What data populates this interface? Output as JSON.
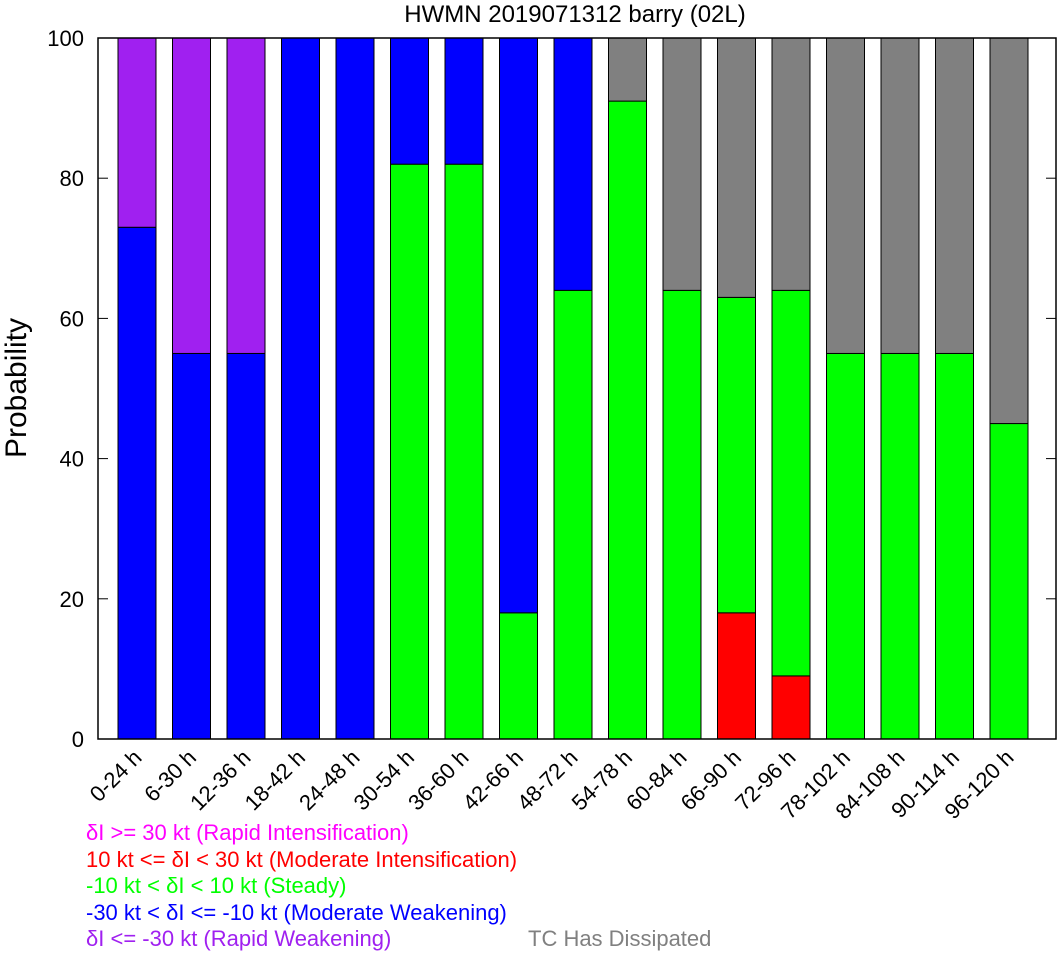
{
  "chart_data": {
    "type": "bar",
    "stacked": true,
    "title": "HWMN 2019071312 barry (02L)",
    "xlabel": "",
    "ylabel": "Probability",
    "ylim": [
      0,
      100
    ],
    "yticks": [
      0,
      20,
      40,
      60,
      80,
      100
    ],
    "grid": false,
    "categories": [
      "0-24 h",
      "6-30 h",
      "12-36 h",
      "18-42 h",
      "24-48 h",
      "30-54 h",
      "36-60 h",
      "42-66 h",
      "48-72 h",
      "54-78 h",
      "60-84 h",
      "66-90 h",
      "72-96 h",
      "78-102 h",
      "84-108 h",
      "90-114 h",
      "96-120 h"
    ],
    "series": [
      {
        "key": "ri",
        "color": "#ff00ff",
        "values": [
          0,
          0,
          0,
          0,
          0,
          0,
          0,
          0,
          0,
          0,
          0,
          0,
          0,
          0,
          0,
          0,
          0
        ]
      },
      {
        "key": "mi",
        "color": "#ff0000",
        "values": [
          0,
          0,
          0,
          0,
          0,
          0,
          0,
          0,
          0,
          0,
          0,
          18,
          9,
          0,
          0,
          0,
          0
        ]
      },
      {
        "key": "steady",
        "color": "#00ff00",
        "values": [
          0,
          0,
          0,
          0,
          0,
          82,
          82,
          18,
          64,
          91,
          64,
          45,
          55,
          55,
          55,
          55,
          45
        ]
      },
      {
        "key": "mw",
        "color": "#0000ff",
        "values": [
          73,
          55,
          55,
          100,
          100,
          18,
          18,
          82,
          36,
          0,
          0,
          0,
          0,
          0,
          0,
          0,
          0
        ]
      },
      {
        "key": "rw",
        "color": "#a020f0",
        "values": [
          27,
          45,
          45,
          0,
          0,
          0,
          0,
          0,
          0,
          0,
          0,
          0,
          0,
          0,
          0,
          0,
          0
        ]
      },
      {
        "key": "dissipated",
        "color": "#808080",
        "values": [
          0,
          0,
          0,
          0,
          0,
          0,
          0,
          0,
          0,
          9,
          36,
          37,
          36,
          45,
          45,
          45,
          55
        ]
      }
    ]
  },
  "legend": {
    "ri": {
      "text": "δI >= 30 kt (Rapid Intensification)",
      "color": "#ff00ff"
    },
    "mi": {
      "text": "10 kt <= δI < 30 kt (Moderate Intensification)",
      "color": "#ff0000"
    },
    "steady": {
      "text": "-10 kt < δI < 10 kt (Steady)",
      "color": "#00ff00"
    },
    "mw": {
      "text": "-30 kt < δI <= -10 kt (Moderate Weakening)",
      "color": "#0000ff"
    },
    "rw": {
      "text": "δI <= -30 kt (Rapid Weakening)",
      "color": "#a020f0"
    },
    "dissipated": {
      "text": "TC Has Dissipated",
      "color": "#808080"
    }
  }
}
